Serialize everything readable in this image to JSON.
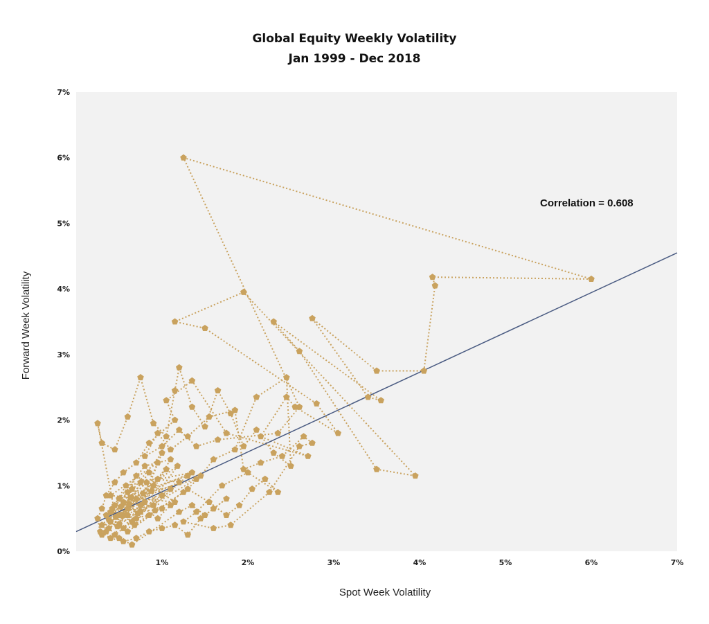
{
  "chart_data": {
    "type": "scatter",
    "title": "Global Equity Weekly Volatility",
    "subtitle": "Jan 1999 - Dec 2018",
    "xlabel": "Spot Week Volatility",
    "ylabel": "Forward Week Volatility",
    "xlim": [
      0,
      7
    ],
    "ylim": [
      0,
      7
    ],
    "x_ticks": [
      "1%",
      "2%",
      "3%",
      "4%",
      "5%",
      "6%",
      "7%"
    ],
    "y_ticks": [
      "0%",
      "1%",
      "2%",
      "3%",
      "4%",
      "5%",
      "6%",
      "7%"
    ],
    "annotation": "Correlation = 0.608",
    "colors": {
      "points": "#c9a25e",
      "trend": "#4a5b82",
      "plot_bg": "#f2f2f2"
    },
    "grid": false,
    "connected_points": true,
    "trend_line": {
      "x": [
        0,
        7
      ],
      "y": [
        0.3,
        4.55
      ]
    },
    "points": [
      [
        0.55,
        0.55
      ],
      [
        0.7,
        0.8
      ],
      [
        0.4,
        0.45
      ],
      [
        0.9,
        1.0
      ],
      [
        0.35,
        0.3
      ],
      [
        0.6,
        0.65
      ],
      [
        0.8,
        0.75
      ],
      [
        1.1,
        0.95
      ],
      [
        0.5,
        0.4
      ],
      [
        0.65,
        0.95
      ],
      [
        0.45,
        0.7
      ],
      [
        0.3,
        0.25
      ],
      [
        0.85,
        1.2
      ],
      [
        1.0,
        0.85
      ],
      [
        0.75,
        0.6
      ],
      [
        0.55,
        0.35
      ],
      [
        0.95,
        1.1
      ],
      [
        1.2,
        1.05
      ],
      [
        0.4,
        0.6
      ],
      [
        0.7,
        0.5
      ],
      [
        0.6,
        0.9
      ],
      [
        0.35,
        0.55
      ],
      [
        0.9,
        0.7
      ],
      [
        1.3,
        1.15
      ],
      [
        0.5,
        0.8
      ],
      [
        0.8,
        1.3
      ],
      [
        1.1,
        1.4
      ],
      [
        0.65,
        0.45
      ],
      [
        0.45,
        0.25
      ],
      [
        0.75,
        1.05
      ],
      [
        1.0,
        0.65
      ],
      [
        0.55,
        0.75
      ],
      [
        0.3,
        0.4
      ],
      [
        0.85,
        0.55
      ],
      [
        1.25,
        0.9
      ],
      [
        0.6,
        0.3
      ],
      [
        0.95,
        1.35
      ],
      [
        0.4,
        0.85
      ],
      [
        1.15,
        0.75
      ],
      [
        0.7,
        1.15
      ],
      [
        0.5,
        0.55
      ],
      [
        0.88,
        0.92
      ],
      [
        1.05,
        1.25
      ],
      [
        0.62,
        0.72
      ],
      [
        0.48,
        0.38
      ],
      [
        0.78,
        0.88
      ],
      [
        1.35,
        1.2
      ],
      [
        0.58,
        1.0
      ],
      [
        0.42,
        0.65
      ],
      [
        0.92,
        0.62
      ],
      [
        0.68,
        0.4
      ],
      [
        1.18,
        1.3
      ],
      [
        0.52,
        0.68
      ],
      [
        0.82,
        1.05
      ],
      [
        0.38,
        0.48
      ],
      [
        1.0,
        1.5
      ],
      [
        0.72,
        0.58
      ],
      [
        1.4,
        1.1
      ],
      [
        0.64,
        0.82
      ],
      [
        0.46,
        0.52
      ],
      [
        0.25,
        1.95
      ],
      [
        0.3,
        1.65
      ],
      [
        0.45,
        1.55
      ],
      [
        0.6,
        2.05
      ],
      [
        0.75,
        2.65
      ],
      [
        0.9,
        1.95
      ],
      [
        1.05,
        1.75
      ],
      [
        1.15,
        2.45
      ],
      [
        1.2,
        2.8
      ],
      [
        1.35,
        2.2
      ],
      [
        1.5,
        1.9
      ],
      [
        1.65,
        2.45
      ],
      [
        1.8,
        2.1
      ],
      [
        1.95,
        1.6
      ],
      [
        2.1,
        1.85
      ],
      [
        2.3,
        1.5
      ],
      [
        2.5,
        1.3
      ],
      [
        2.45,
        2.65
      ],
      [
        2.1,
        2.35
      ],
      [
        1.85,
        1.55
      ],
      [
        1.6,
        1.4
      ],
      [
        1.45,
        1.15
      ],
      [
        1.3,
        0.95
      ],
      [
        1.55,
        0.75
      ],
      [
        1.75,
        0.55
      ],
      [
        1.9,
        0.7
      ],
      [
        2.05,
        0.95
      ],
      [
        2.2,
        1.1
      ],
      [
        2.35,
        0.9
      ],
      [
        2.0,
        1.2
      ],
      [
        1.7,
        1.0
      ],
      [
        1.4,
        0.6
      ],
      [
        1.25,
        0.45
      ],
      [
        1.6,
        0.35
      ],
      [
        1.8,
        0.4
      ],
      [
        2.25,
        0.9
      ],
      [
        2.6,
        1.6
      ],
      [
        2.75,
        1.65
      ],
      [
        2.65,
        1.75
      ],
      [
        2.4,
        1.45
      ],
      [
        2.15,
        1.35
      ],
      [
        1.95,
        1.25
      ],
      [
        1.85,
        2.15
      ],
      [
        1.55,
        2.05
      ],
      [
        1.3,
        1.75
      ],
      [
        1.1,
        1.55
      ],
      [
        0.95,
        1.8
      ],
      [
        0.8,
        1.45
      ],
      [
        1.0,
        1.6
      ],
      [
        1.2,
        1.85
      ],
      [
        1.4,
        1.6
      ],
      [
        1.65,
        1.7
      ],
      [
        2.35,
        1.8
      ],
      [
        2.6,
        2.2
      ],
      [
        1.25,
        6.0
      ],
      [
        6.0,
        4.15
      ],
      [
        4.15,
        4.18
      ],
      [
        4.18,
        4.05
      ],
      [
        4.05,
        2.75
      ],
      [
        3.5,
        2.75
      ],
      [
        2.75,
        3.55
      ],
      [
        3.4,
        2.35
      ],
      [
        3.55,
        2.3
      ],
      [
        2.3,
        3.5
      ],
      [
        2.6,
        3.05
      ],
      [
        3.5,
        1.25
      ],
      [
        3.95,
        1.15
      ],
      [
        1.95,
        3.95
      ],
      [
        1.15,
        3.5
      ],
      [
        1.5,
        3.4
      ],
      [
        2.8,
        2.25
      ],
      [
        3.05,
        1.8
      ],
      [
        2.55,
        2.2
      ],
      [
        2.45,
        2.35
      ],
      [
        2.15,
        1.75
      ],
      [
        2.7,
        1.45
      ],
      [
        1.75,
        1.8
      ],
      [
        1.35,
        2.6
      ],
      [
        1.05,
        2.3
      ],
      [
        1.15,
        2.0
      ],
      [
        0.85,
        1.65
      ],
      [
        0.7,
        1.35
      ],
      [
        0.55,
        1.2
      ],
      [
        0.45,
        1.05
      ],
      [
        0.35,
        0.85
      ],
      [
        0.3,
        0.65
      ],
      [
        0.25,
        0.5
      ],
      [
        0.28,
        0.3
      ],
      [
        0.4,
        0.2
      ],
      [
        0.55,
        0.15
      ],
      [
        0.7,
        0.2
      ],
      [
        0.85,
        0.3
      ],
      [
        1.0,
        0.35
      ],
      [
        1.15,
        0.4
      ],
      [
        1.3,
        0.25
      ],
      [
        1.45,
        0.5
      ],
      [
        1.6,
        0.65
      ],
      [
        1.75,
        0.8
      ],
      [
        1.5,
        0.55
      ],
      [
        1.35,
        0.7
      ],
      [
        1.2,
        0.6
      ],
      [
        0.65,
        0.1
      ],
      [
        0.5,
        0.2
      ],
      [
        0.38,
        0.35
      ],
      [
        0.6,
        0.55
      ],
      [
        0.75,
        0.7
      ],
      [
        0.95,
        0.5
      ],
      [
        1.1,
        0.7
      ]
    ]
  }
}
